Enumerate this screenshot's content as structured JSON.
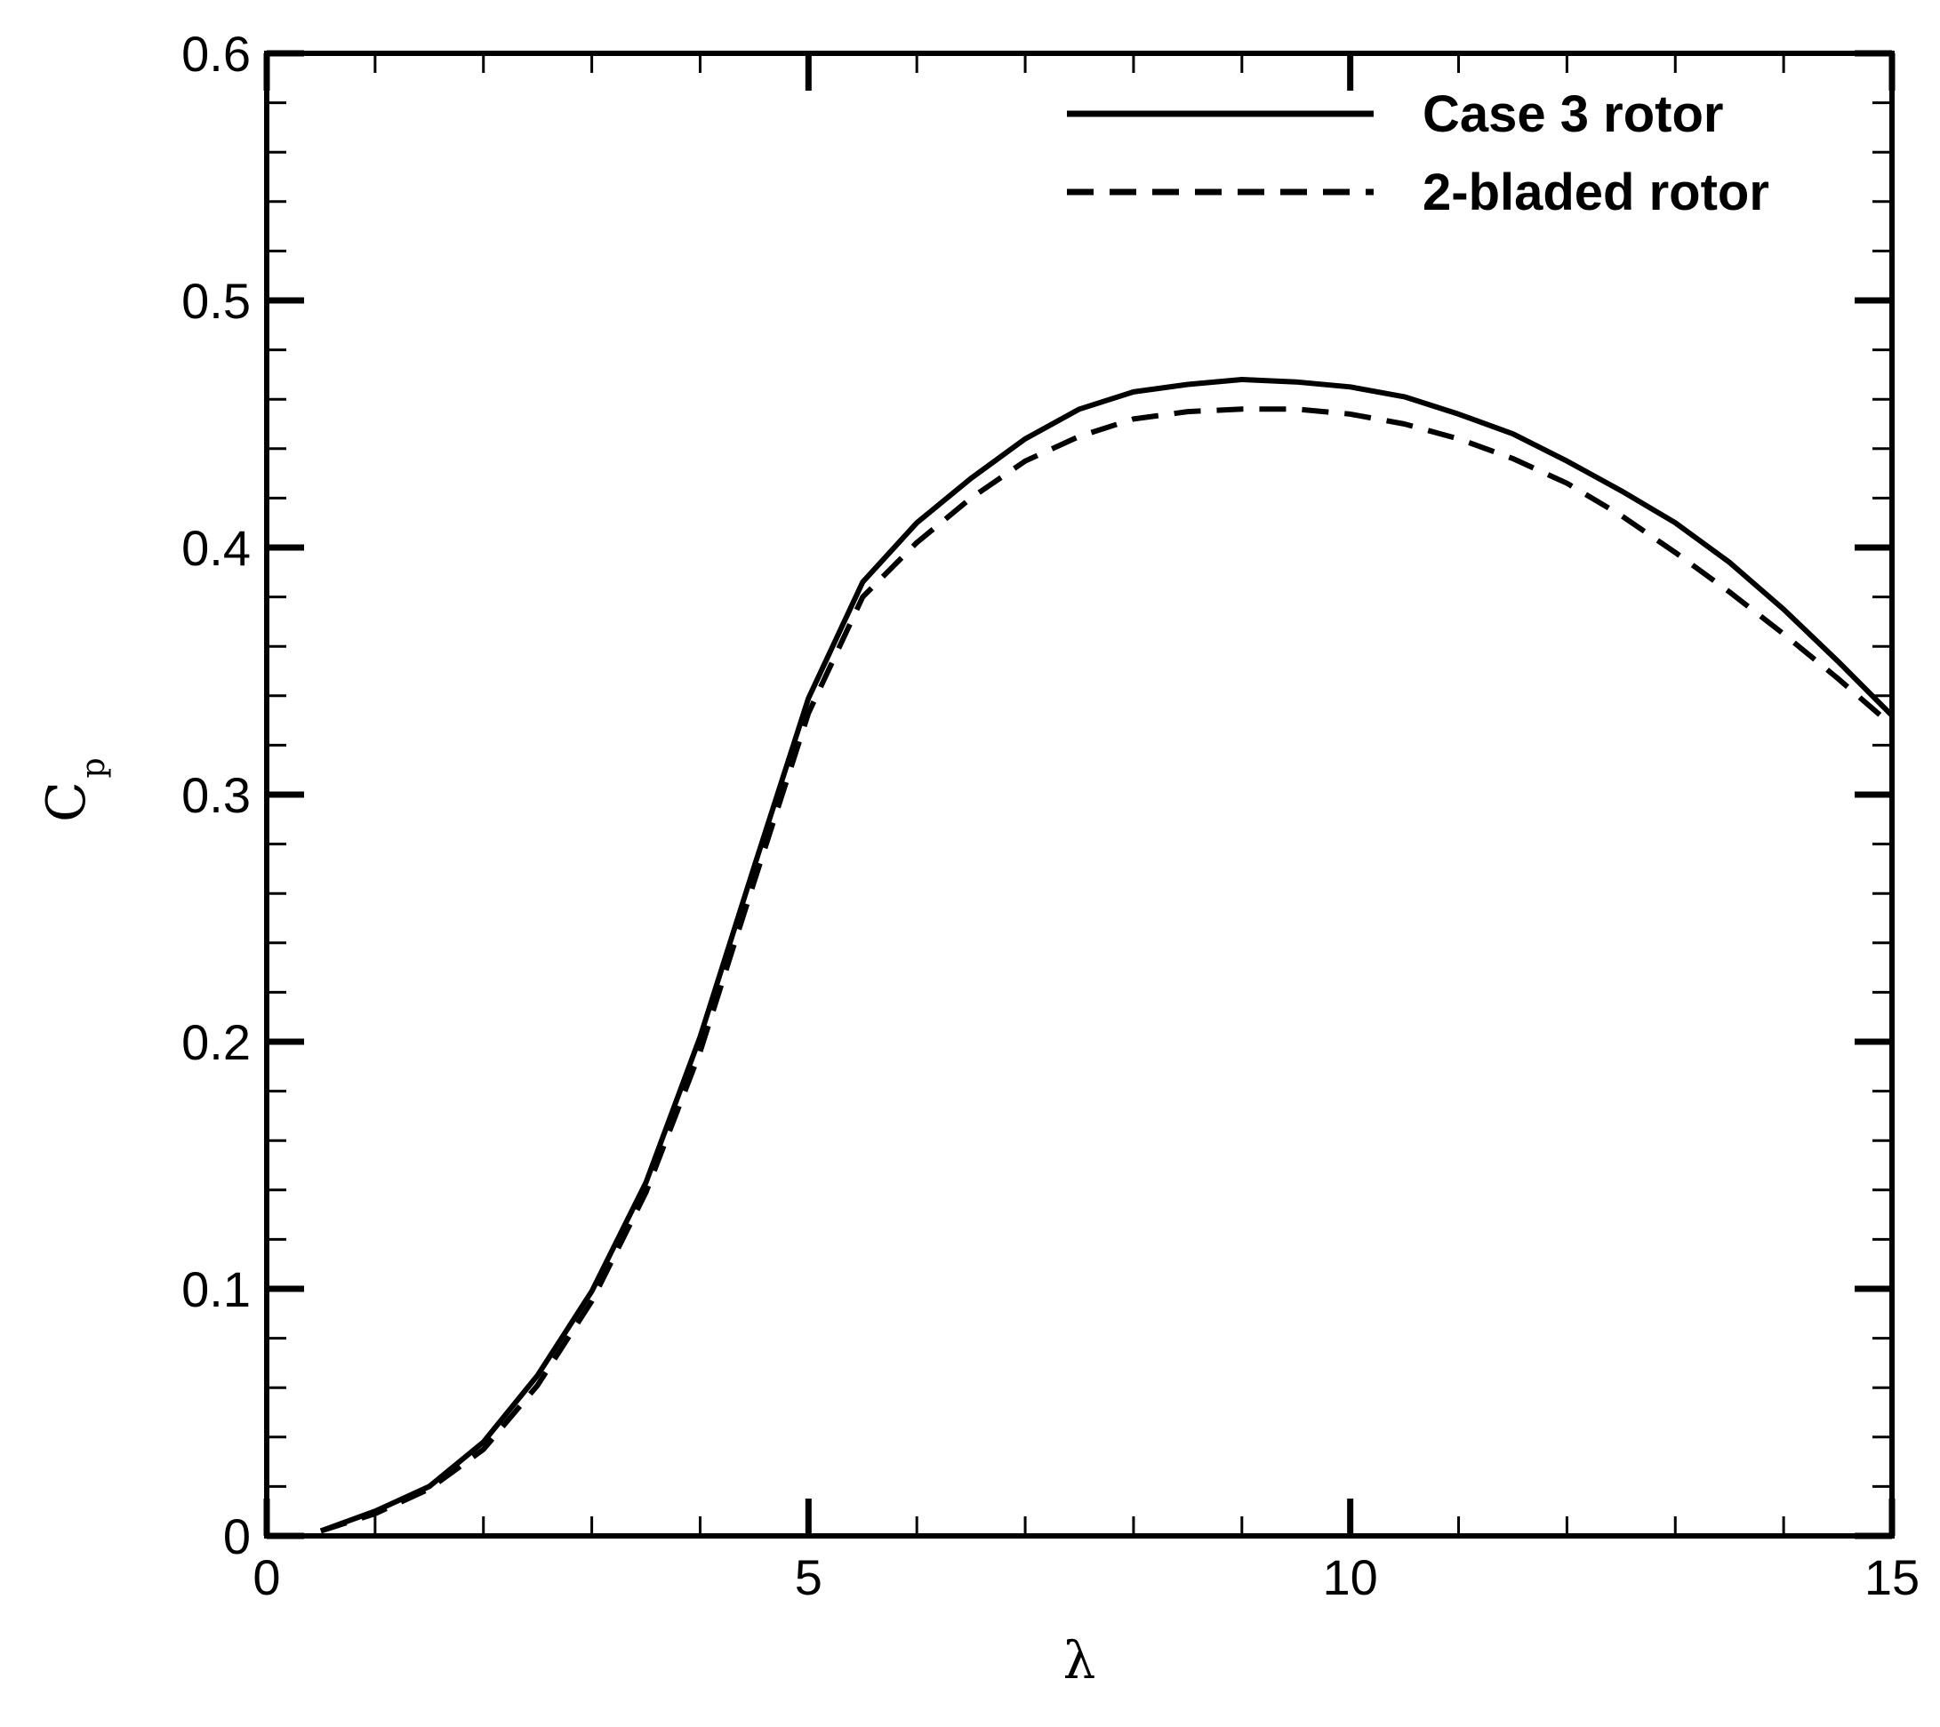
{
  "chart_data": {
    "type": "line",
    "title": "",
    "xlabel": "λ",
    "ylabel": "C",
    "ylabel_subscript": "p",
    "xlim": [
      0,
      15
    ],
    "ylim": [
      0,
      0.6
    ],
    "x_ticks": [
      0,
      5,
      10,
      15
    ],
    "x_tick_labels": [
      "0",
      "5",
      "10",
      "15"
    ],
    "y_ticks": [
      0,
      0.1,
      0.2,
      0.3,
      0.4,
      0.5,
      0.6
    ],
    "y_tick_labels": [
      "0",
      "0.1",
      "0.2",
      "0.3",
      "0.4",
      "0.5",
      "0.6"
    ],
    "grid": false,
    "legend_position": "top-right",
    "series": [
      {
        "name": "Case 3 rotor",
        "line_style": "solid",
        "color": "#000000",
        "x": [
          0.5,
          1.0,
          1.5,
          2.0,
          2.5,
          3.0,
          3.5,
          4.0,
          4.5,
          5.0,
          5.5,
          6.0,
          6.5,
          7.0,
          7.5,
          8.0,
          8.5,
          9.0,
          9.5,
          10.0,
          10.5,
          11.0,
          11.5,
          12.0,
          12.5,
          13.0,
          13.5,
          14.0,
          14.5,
          15.0
        ],
        "y": [
          0.002,
          0.01,
          0.02,
          0.038,
          0.065,
          0.099,
          0.143,
          0.202,
          0.271,
          0.339,
          0.386,
          0.41,
          0.428,
          0.444,
          0.456,
          0.463,
          0.466,
          0.468,
          0.467,
          0.465,
          0.461,
          0.454,
          0.446,
          0.435,
          0.423,
          0.41,
          0.394,
          0.375,
          0.354,
          0.332
        ]
      },
      {
        "name": "2-bladed rotor",
        "line_style": "dashed",
        "color": "#000000",
        "x": [
          0.5,
          1.0,
          1.5,
          2.0,
          2.5,
          3.0,
          3.5,
          4.0,
          4.5,
          5.0,
          5.5,
          6.0,
          6.5,
          7.0,
          7.5,
          8.0,
          8.5,
          9.0,
          9.5,
          10.0,
          10.5,
          11.0,
          11.5,
          12.0,
          12.5,
          13.0,
          13.5,
          14.0,
          14.5,
          15.0
        ],
        "y": [
          0.002,
          0.009,
          0.019,
          0.035,
          0.061,
          0.095,
          0.139,
          0.196,
          0.265,
          0.333,
          0.38,
          0.402,
          0.42,
          0.435,
          0.445,
          0.452,
          0.455,
          0.456,
          0.456,
          0.454,
          0.45,
          0.444,
          0.436,
          0.426,
          0.413,
          0.398,
          0.382,
          0.365,
          0.347,
          0.328
        ]
      }
    ]
  }
}
